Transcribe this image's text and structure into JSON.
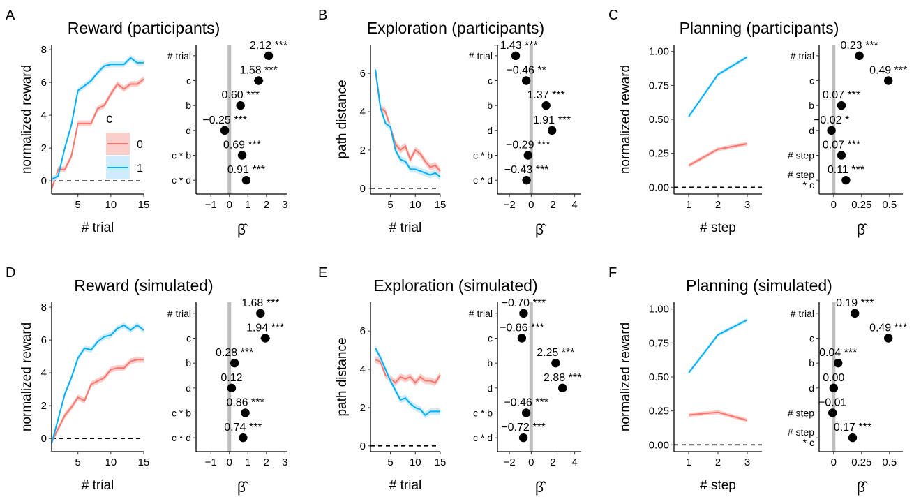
{
  "colors": {
    "c0": "#f8766d",
    "c1": "#00b0f6",
    "c0_fill": "#f8c6c2",
    "c1_fill": "#c5e9fb",
    "zero_line": "#bebebe"
  },
  "legend": {
    "title": "c",
    "items": [
      "0",
      "1"
    ]
  },
  "chart_data": [
    {
      "panel": "A",
      "type": "line",
      "title": "Reward (participants)",
      "xlabel": "# trial",
      "ylabel": "normalized reward",
      "xlim": [
        1,
        15
      ],
      "ylim": [
        -0.8,
        8.3
      ],
      "xticks": [
        5,
        10,
        15
      ],
      "yticks": [
        0,
        2,
        4,
        6,
        8
      ],
      "series": [
        {
          "name": "0",
          "x": [
            1,
            2,
            3,
            4,
            5,
            6,
            7,
            8,
            9,
            10,
            11,
            12,
            13,
            14,
            15
          ],
          "y": [
            -0.5,
            0.7,
            0.7,
            1.5,
            3.5,
            3.5,
            3.5,
            4.4,
            4.6,
            5.3,
            5.9,
            5.6,
            5.9,
            5.9,
            6.2
          ]
        },
        {
          "name": "1",
          "x": [
            1,
            2,
            3,
            4,
            5,
            6,
            7,
            8,
            9,
            10,
            11,
            12,
            13,
            14,
            15
          ],
          "y": [
            0.1,
            0.3,
            2.0,
            3.4,
            5.5,
            5.8,
            6.1,
            6.6,
            7.0,
            7.1,
            7.1,
            7.1,
            7.5,
            7.2,
            7.2
          ]
        }
      ]
    },
    {
      "panel": "A",
      "type": "scatter",
      "xlabel": "β̂",
      "xlim": [
        -1.8,
        3.1
      ],
      "xticks": [
        -1,
        0,
        1,
        2,
        3
      ],
      "categories": [
        "# trial",
        "c",
        "b",
        "d",
        "c * b",
        "c * d"
      ],
      "values": [
        2.12,
        1.58,
        0.6,
        -0.25,
        0.69,
        0.91
      ],
      "labels": [
        "2.12 ***",
        "1.58 ***",
        "0.60 ***",
        "−0.25 ***",
        "0.69 ***",
        "0.91 ***"
      ],
      "errors": [
        0.05,
        0.25,
        0.05,
        0.05,
        0.05,
        0.05
      ]
    },
    {
      "panel": "B",
      "type": "line",
      "title": "Exploration (participants)",
      "xlabel": "# trial",
      "ylabel": "path distance",
      "xlim": [
        1,
        15
      ],
      "ylim": [
        -0.3,
        7.5
      ],
      "xticks": [
        5,
        10,
        15
      ],
      "yticks": [
        0,
        2,
        4,
        6
      ],
      "series": [
        {
          "name": "0",
          "x": [
            2,
            3,
            4,
            5,
            6,
            7,
            8,
            9,
            10,
            11,
            12,
            13,
            14,
            15
          ],
          "y": [
            6.1,
            4.2,
            4.0,
            3.2,
            2.3,
            2.0,
            2.2,
            1.5,
            2.0,
            1.8,
            1.4,
            1.1,
            1.2,
            0.9
          ]
        },
        {
          "name": "1",
          "x": [
            2,
            3,
            4,
            5,
            6,
            7,
            8,
            9,
            10,
            11,
            12,
            13,
            14,
            15
          ],
          "y": [
            6.2,
            4.2,
            3.4,
            3.2,
            2.0,
            1.5,
            1.4,
            1.0,
            1.0,
            0.9,
            0.8,
            0.7,
            0.8,
            0.6
          ]
        }
      ]
    },
    {
      "panel": "B",
      "type": "scatter",
      "xlabel": "β̂",
      "xlim": [
        -3.1,
        4.6
      ],
      "xticks": [
        -2,
        0,
        2,
        4
      ],
      "categories": [
        "# trial",
        "c",
        "b",
        "d",
        "c * b",
        "c * d"
      ],
      "values": [
        -1.43,
        -0.46,
        1.37,
        1.91,
        -0.29,
        -0.43
      ],
      "labels": [
        "−1.43 ***",
        "−0.46 **",
        "1.37 ***",
        "1.91 ***",
        "−0.29 ***",
        "−0.43 ***"
      ]
    },
    {
      "panel": "C",
      "type": "line",
      "title": "Planning (participants)",
      "xlabel": "# step",
      "ylabel": "normalized reward",
      "xlim": [
        0.5,
        3.5
      ],
      "ylim": [
        -0.05,
        1.05
      ],
      "xticks": [
        1,
        2,
        3
      ],
      "yticks": [
        0.0,
        0.25,
        0.5,
        0.75,
        1.0
      ],
      "yticklabels": [
        "0.00",
        "0.25",
        "0.50",
        "0.75",
        "1.00"
      ],
      "series": [
        {
          "name": "0",
          "x": [
            1,
            2,
            3
          ],
          "y": [
            0.16,
            0.28,
            0.32
          ]
        },
        {
          "name": "1",
          "x": [
            1,
            2,
            3
          ],
          "y": [
            0.52,
            0.83,
            0.96
          ]
        }
      ]
    },
    {
      "panel": "C",
      "type": "scatter",
      "xlabel": "β̂",
      "xlim": [
        -0.13,
        0.62
      ],
      "xticks": [
        0,
        0.25,
        0.5
      ],
      "xticklabels": [
        "0",
        "0.25",
        "0.5"
      ],
      "categories": [
        "# trial",
        "c",
        "b",
        "d",
        "# step",
        "# step\n* c"
      ],
      "values": [
        0.23,
        0.49,
        0.07,
        -0.02,
        0.07,
        0.11
      ],
      "labels": [
        "0.23 ***",
        "0.49 ***",
        "0.07 ***",
        "−0.02 *",
        "0.07 ***",
        "0.11 ***"
      ]
    },
    {
      "panel": "D",
      "type": "line",
      "title": "Reward (simulated)",
      "xlabel": "# trial",
      "ylabel": "normalized reward",
      "xlim": [
        1,
        15
      ],
      "ylim": [
        -0.8,
        8.3
      ],
      "xticks": [
        5,
        10,
        15
      ],
      "yticks": [
        0,
        2,
        4,
        6,
        8
      ],
      "series": [
        {
          "name": "0",
          "x": [
            1,
            2,
            3,
            4,
            5,
            6,
            7,
            8,
            9,
            10,
            11,
            12,
            13,
            14,
            15
          ],
          "y": [
            -0.2,
            0.6,
            1.4,
            1.9,
            2.5,
            2.3,
            3.3,
            3.5,
            3.7,
            4.2,
            4.3,
            4.3,
            4.7,
            4.8,
            4.8
          ]
        },
        {
          "name": "1",
          "x": [
            1,
            2,
            3,
            4,
            5,
            6,
            7,
            8,
            9,
            10,
            11,
            12,
            13,
            14,
            15
          ],
          "y": [
            -0.3,
            1.2,
            2.7,
            3.7,
            4.9,
            5.5,
            5.4,
            5.9,
            6.2,
            6.3,
            6.7,
            6.9,
            6.6,
            6.9,
            6.6
          ]
        }
      ]
    },
    {
      "panel": "D",
      "type": "scatter",
      "xlabel": "β̂",
      "xlim": [
        -1.8,
        3.1
      ],
      "xticks": [
        -1,
        0,
        1,
        2,
        3
      ],
      "categories": [
        "# trial",
        "c",
        "b",
        "d",
        "c * b",
        "c * d"
      ],
      "values": [
        1.68,
        1.94,
        0.28,
        0.12,
        0.86,
        0.74
      ],
      "labels": [
        "1.68 ***",
        "1.94 ***",
        "0.28 ***",
        "0.12",
        "0.86 ***",
        "0.74 ***"
      ],
      "errors": [
        0.05,
        0.25,
        0.05,
        0.05,
        0.05,
        0.05
      ]
    },
    {
      "panel": "E",
      "type": "line",
      "title": "Exploration (simulated)",
      "xlabel": "# trial",
      "ylabel": "path distance",
      "xlim": [
        1,
        15
      ],
      "ylim": [
        -0.3,
        7.5
      ],
      "xticks": [
        5,
        10,
        15
      ],
      "yticks": [
        0,
        2,
        4,
        6
      ],
      "series": [
        {
          "name": "0",
          "x": [
            2,
            3,
            4,
            5,
            6,
            7,
            8,
            9,
            10,
            11,
            12,
            13,
            14,
            15
          ],
          "y": [
            4.5,
            4.4,
            3.7,
            3.5,
            3.3,
            3.6,
            3.5,
            3.6,
            3.3,
            3.6,
            3.4,
            3.4,
            3.3,
            3.7
          ]
        },
        {
          "name": "1",
          "x": [
            2,
            3,
            4,
            5,
            6,
            7,
            8,
            9,
            10,
            11,
            12,
            13,
            14,
            15
          ],
          "y": [
            5.1,
            4.6,
            4.0,
            3.4,
            2.9,
            2.4,
            2.5,
            2.2,
            2.0,
            1.9,
            1.6,
            1.8,
            1.8,
            1.8
          ]
        }
      ]
    },
    {
      "panel": "E",
      "type": "scatter",
      "xlabel": "β̂",
      "xlim": [
        -3.1,
        4.6
      ],
      "xticks": [
        -2,
        0,
        2,
        4
      ],
      "categories": [
        "# trial",
        "c",
        "b",
        "d",
        "c * b",
        "c * d"
      ],
      "values": [
        -0.7,
        -0.86,
        2.25,
        2.88,
        -0.46,
        -0.72
      ],
      "labels": [
        "−0.70 ***",
        "−0.86 ***",
        "2.25 ***",
        "2.88 ***",
        "−0.46 ***",
        "−0.72 ***"
      ]
    },
    {
      "panel": "F",
      "type": "line",
      "title": "Planning (simulated)",
      "xlabel": "# step",
      "ylabel": "normalized reward",
      "xlim": [
        0.5,
        3.5
      ],
      "ylim": [
        -0.05,
        1.05
      ],
      "xticks": [
        1,
        2,
        3
      ],
      "yticks": [
        0.0,
        0.25,
        0.5,
        0.75,
        1.0
      ],
      "yticklabels": [
        "0.00",
        "0.25",
        "0.50",
        "0.75",
        "1.00"
      ],
      "series": [
        {
          "name": "0",
          "x": [
            1,
            2,
            3
          ],
          "y": [
            0.22,
            0.24,
            0.18
          ]
        },
        {
          "name": "1",
          "x": [
            1,
            2,
            3
          ],
          "y": [
            0.53,
            0.81,
            0.92
          ]
        }
      ]
    },
    {
      "panel": "F",
      "type": "scatter",
      "xlabel": "β̂",
      "xlim": [
        -0.13,
        0.62
      ],
      "xticks": [
        0,
        0.25,
        0.5
      ],
      "xticklabels": [
        "0",
        "0.25",
        "0.5"
      ],
      "categories": [
        "# trial",
        "c",
        "b",
        "d",
        "# step",
        "# step\n* c"
      ],
      "values": [
        0.19,
        0.49,
        0.04,
        0.0,
        -0.01,
        0.17
      ],
      "labels": [
        "0.19 ***",
        "0.49 ***",
        "0.04 ***",
        "0.00",
        "−0.01",
        "0.17 ***"
      ]
    }
  ]
}
